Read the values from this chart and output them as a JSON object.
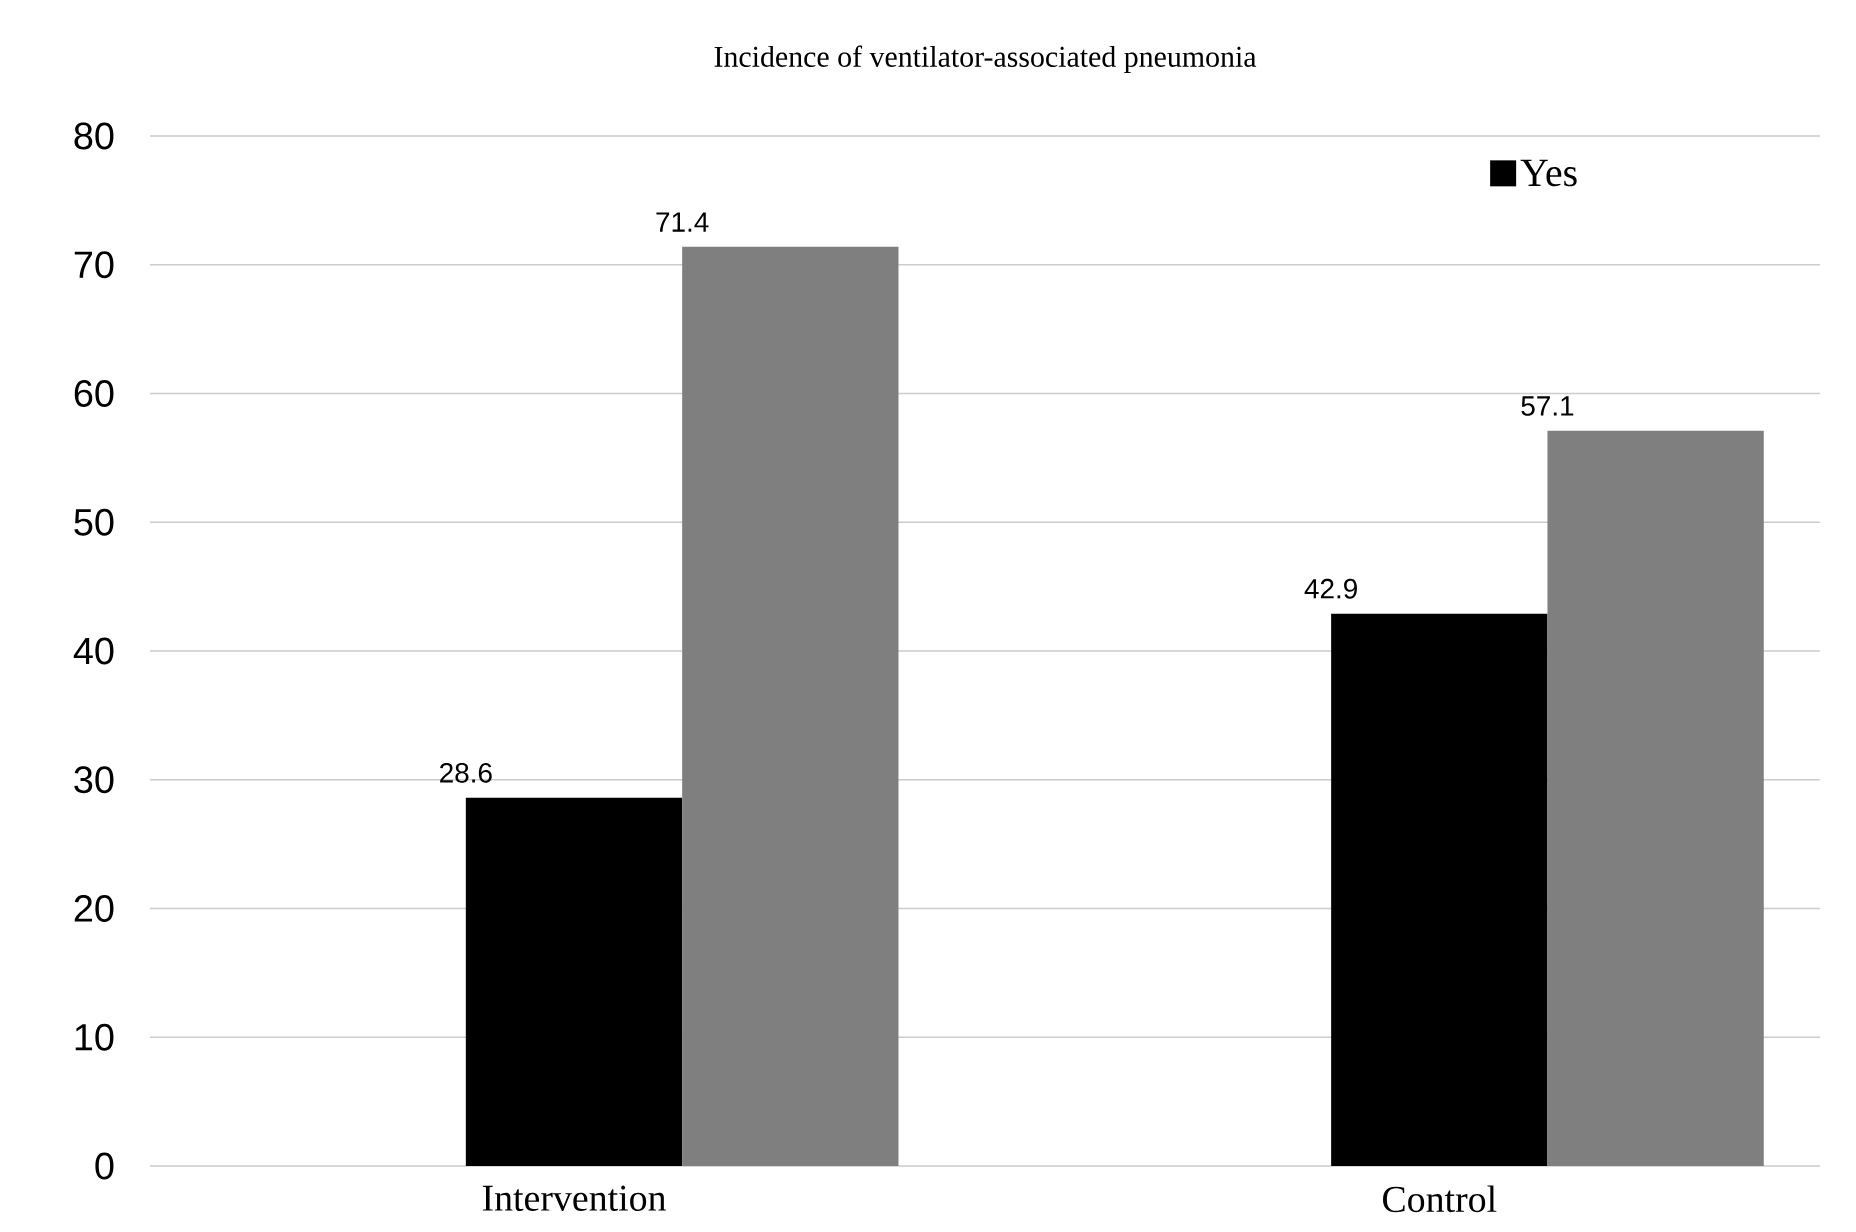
{
  "chart_data": {
    "type": "bar",
    "title": "Incidence of ventilator-associated pneumonia",
    "categories": [
      "Intervention",
      "Control"
    ],
    "series": [
      {
        "name": "Yes",
        "color": "#000000",
        "values": [
          28.6,
          42.9
        ],
        "value_labels": [
          "28.6",
          "42.9"
        ]
      },
      {
        "color": "#7f7f7f",
        "values": [
          71.4,
          57.1
        ],
        "value_labels": [
          "71.4",
          "57.1"
        ]
      }
    ],
    "ylim": [
      0,
      80
    ],
    "yticks": [
      0,
      10,
      20,
      30,
      40,
      50,
      60,
      70,
      80
    ],
    "grid": "y",
    "legend": "top right"
  }
}
